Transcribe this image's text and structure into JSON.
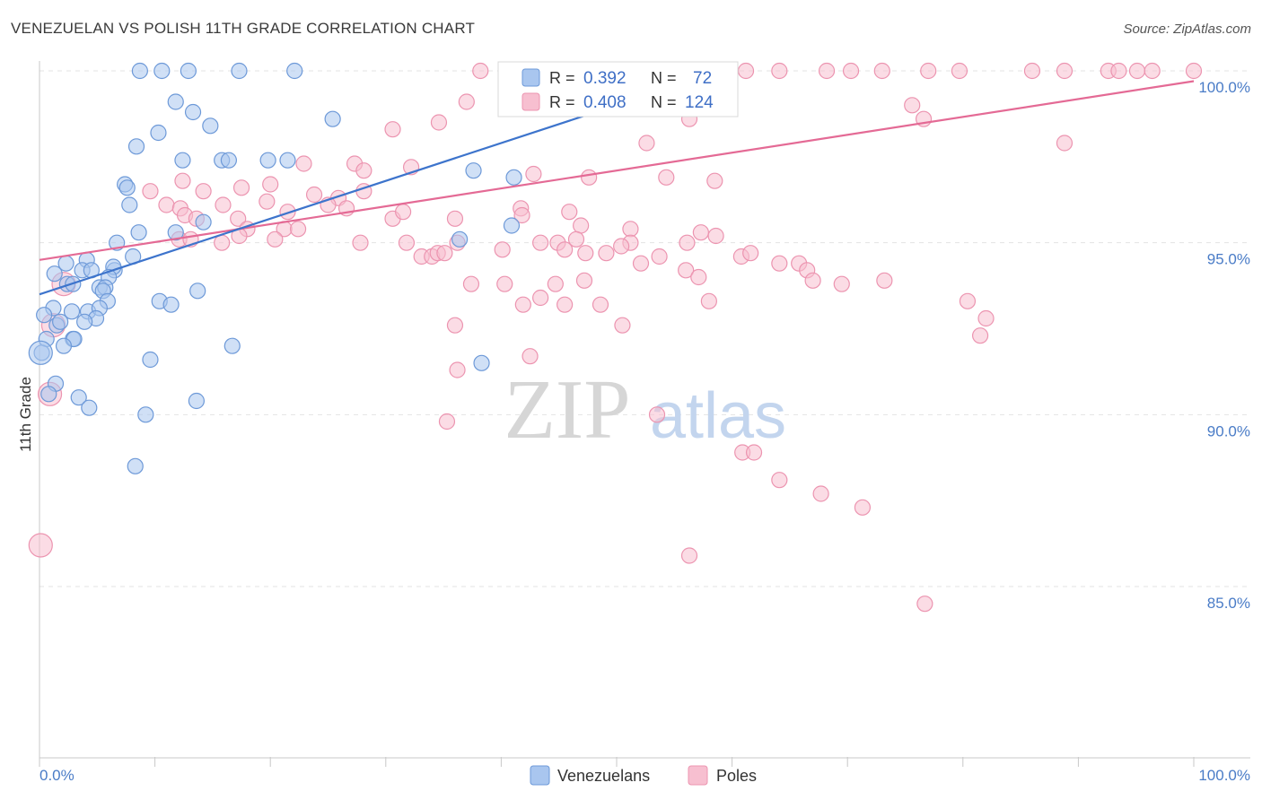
{
  "header": {
    "title": "VENEZUELAN VS POLISH 11TH GRADE CORRELATION CHART",
    "source": "Source: ZipAtlas.com"
  },
  "watermark": {
    "zip": "ZIP",
    "atlas": "atlas"
  },
  "colors": {
    "venezuelan_fill": "#a9c6ef",
    "venezuelan_stroke": "#6d99d8",
    "venezuelan_line": "#3d74cc",
    "poles_fill": "#f7bfd0",
    "poles_stroke": "#ec94b0",
    "poles_line": "#e46a95",
    "tick_text": "#4a7cc7",
    "grid": "#e3e3e3"
  },
  "stats_box": {
    "venezuelans": {
      "r_label": "R =",
      "r_value": "0.392",
      "n_label": "N =",
      "n_value": "72"
    },
    "poles": {
      "r_label": "R =",
      "r_value": "0.408",
      "n_label": "N =",
      "n_value": "124"
    }
  },
  "chart_data": {
    "type": "scatter",
    "title": "VENEZUELAN VS POLISH 11TH GRADE CORRELATION CHART",
    "xlabel": "",
    "ylabel": "11th Grade",
    "xlim": [
      0,
      100
    ],
    "ylim": [
      80.5,
      100.8
    ],
    "x_tick_labels": [
      "0.0%",
      "100.0%"
    ],
    "y_ticks": [
      85,
      90,
      95,
      100
    ],
    "y_tick_labels": [
      "85.0%",
      "90.0%",
      "95.0%",
      "100.0%"
    ],
    "grid": true,
    "legend": [
      "Venezuelans",
      "Poles"
    ],
    "series": [
      {
        "name": "Venezuelans",
        "r": 0.392,
        "n": 72,
        "trend": {
          "x": [
            0,
            50
          ],
          "y": [
            93.5,
            99.0
          ]
        },
        "points": [
          [
            8.7,
            100
          ],
          [
            10.6,
            100
          ],
          [
            12.9,
            100
          ],
          [
            17.3,
            100
          ],
          [
            22.1,
            100
          ],
          [
            11.8,
            99.1
          ],
          [
            13.3,
            98.8
          ],
          [
            14.8,
            98.4
          ],
          [
            25.4,
            98.6
          ],
          [
            10.3,
            98.2
          ],
          [
            8.4,
            97.8
          ],
          [
            12.4,
            97.4
          ],
          [
            15.8,
            97.4
          ],
          [
            16.4,
            97.4
          ],
          [
            19.8,
            97.4
          ],
          [
            21.5,
            97.4
          ],
          [
            37.6,
            97.1
          ],
          [
            41.1,
            96.9
          ],
          [
            7.4,
            96.7
          ],
          [
            7.6,
            96.6
          ],
          [
            7.8,
            96.1
          ],
          [
            14.2,
            95.6
          ],
          [
            40.9,
            95.5
          ],
          [
            11.8,
            95.3
          ],
          [
            8.6,
            95.3
          ],
          [
            36.4,
            95.1
          ],
          [
            6.7,
            95.0
          ],
          [
            8.1,
            94.6
          ],
          [
            4.1,
            94.5
          ],
          [
            2.3,
            94.4
          ],
          [
            1.3,
            94.1
          ],
          [
            3.7,
            94.2
          ],
          [
            4.5,
            94.2
          ],
          [
            6.5,
            94.2
          ],
          [
            6.4,
            94.3
          ],
          [
            6.0,
            94.0
          ],
          [
            2.4,
            93.8
          ],
          [
            2.9,
            93.8
          ],
          [
            5.2,
            93.7
          ],
          [
            5.7,
            93.7
          ],
          [
            5.5,
            93.6
          ],
          [
            13.7,
            93.6
          ],
          [
            10.4,
            93.3
          ],
          [
            11.4,
            93.2
          ],
          [
            5.9,
            93.3
          ],
          [
            4.2,
            93.0
          ],
          [
            5.2,
            93.1
          ],
          [
            1.2,
            93.1
          ],
          [
            2.8,
            93.0
          ],
          [
            0.4,
            92.9
          ],
          [
            4.9,
            92.8
          ],
          [
            1.5,
            92.6
          ],
          [
            1.8,
            92.7
          ],
          [
            3.9,
            92.7
          ],
          [
            0.6,
            92.2
          ],
          [
            2.9,
            92.2
          ],
          [
            3.0,
            92.2
          ],
          [
            2.1,
            92.0
          ],
          [
            16.7,
            92.0
          ],
          [
            0.2,
            91.8
          ],
          [
            9.6,
            91.6
          ],
          [
            38.3,
            91.5
          ],
          [
            1.4,
            90.9
          ],
          [
            0.8,
            90.6
          ],
          [
            3.4,
            90.5
          ],
          [
            13.6,
            90.4
          ],
          [
            4.3,
            90.2
          ],
          [
            9.2,
            90.0
          ],
          [
            8.3,
            88.5
          ]
        ],
        "big_points": [
          [
            0.1,
            91.8
          ]
        ]
      },
      {
        "name": "Poles",
        "r": 0.408,
        "n": 124,
        "trend": {
          "x": [
            0,
            100
          ],
          "y": [
            94.5,
            99.7
          ]
        },
        "points": [
          [
            38.2,
            100
          ],
          [
            42.6,
            100
          ],
          [
            44.0,
            100
          ],
          [
            47.5,
            100
          ],
          [
            50.6,
            100
          ],
          [
            51.6,
            100
          ],
          [
            52.6,
            100
          ],
          [
            53.7,
            100
          ],
          [
            55.6,
            100
          ],
          [
            57.0,
            100
          ],
          [
            61.2,
            100
          ],
          [
            64.1,
            100
          ],
          [
            68.2,
            100
          ],
          [
            70.3,
            100
          ],
          [
            73.0,
            100
          ],
          [
            77.0,
            100
          ],
          [
            79.7,
            100
          ],
          [
            86.0,
            100
          ],
          [
            88.8,
            100
          ],
          [
            92.6,
            100
          ],
          [
            93.5,
            100
          ],
          [
            95.1,
            100
          ],
          [
            96.4,
            100
          ],
          [
            100,
            100
          ],
          [
            37.0,
            99.1
          ],
          [
            46.5,
            99.3
          ],
          [
            49.6,
            99.2
          ],
          [
            75.6,
            99.0
          ],
          [
            56.3,
            98.6
          ],
          [
            76.6,
            98.6
          ],
          [
            34.6,
            98.5
          ],
          [
            30.6,
            98.3
          ],
          [
            52.6,
            97.9
          ],
          [
            88.8,
            97.9
          ],
          [
            22.9,
            97.3
          ],
          [
            27.3,
            97.3
          ],
          [
            28.1,
            97.1
          ],
          [
            32.2,
            97.2
          ],
          [
            42.8,
            97.0
          ],
          [
            47.6,
            96.9
          ],
          [
            12.4,
            96.8
          ],
          [
            20.0,
            96.7
          ],
          [
            54.3,
            96.9
          ],
          [
            58.5,
            96.8
          ],
          [
            9.6,
            96.5
          ],
          [
            14.2,
            96.5
          ],
          [
            17.5,
            96.6
          ],
          [
            23.8,
            96.4
          ],
          [
            28.1,
            96.5
          ],
          [
            25.9,
            96.3
          ],
          [
            26.6,
            96.0
          ],
          [
            25.0,
            96.1
          ],
          [
            19.7,
            96.2
          ],
          [
            41.7,
            96.0
          ],
          [
            45.9,
            95.9
          ],
          [
            11.0,
            96.1
          ],
          [
            12.2,
            96.0
          ],
          [
            15.9,
            96.1
          ],
          [
            21.5,
            95.9
          ],
          [
            12.6,
            95.8
          ],
          [
            13.6,
            95.7
          ],
          [
            17.2,
            95.7
          ],
          [
            18.0,
            95.4
          ],
          [
            21.2,
            95.4
          ],
          [
            22.4,
            95.4
          ],
          [
            30.6,
            95.7
          ],
          [
            31.5,
            95.9
          ],
          [
            36.0,
            95.7
          ],
          [
            41.8,
            95.8
          ],
          [
            46.9,
            95.5
          ],
          [
            51.2,
            95.4
          ],
          [
            57.3,
            95.3
          ],
          [
            58.6,
            95.2
          ],
          [
            51.2,
            95.0
          ],
          [
            56.1,
            95.0
          ],
          [
            12.1,
            95.1
          ],
          [
            13.1,
            95.1
          ],
          [
            15.8,
            95.0
          ],
          [
            17.3,
            95.2
          ],
          [
            20.4,
            95.1
          ],
          [
            27.8,
            95.0
          ],
          [
            31.8,
            95.0
          ],
          [
            33.1,
            94.6
          ],
          [
            34.0,
            94.6
          ],
          [
            34.5,
            94.7
          ],
          [
            35.1,
            94.7
          ],
          [
            36.2,
            95.0
          ],
          [
            40.1,
            94.8
          ],
          [
            43.4,
            95.0
          ],
          [
            44.9,
            95.0
          ],
          [
            45.5,
            94.8
          ],
          [
            46.5,
            95.1
          ],
          [
            47.3,
            94.7
          ],
          [
            49.1,
            94.7
          ],
          [
            50.4,
            94.9
          ],
          [
            52.1,
            94.4
          ],
          [
            53.7,
            94.6
          ],
          [
            56.0,
            94.2
          ],
          [
            57.1,
            94.0
          ],
          [
            60.8,
            94.6
          ],
          [
            61.6,
            94.7
          ],
          [
            64.1,
            94.4
          ],
          [
            65.8,
            94.4
          ],
          [
            66.5,
            94.2
          ],
          [
            67.0,
            93.9
          ],
          [
            69.5,
            93.8
          ],
          [
            73.2,
            93.9
          ],
          [
            47.2,
            93.9
          ],
          [
            37.4,
            93.8
          ],
          [
            40.3,
            93.8
          ],
          [
            44.7,
            93.8
          ],
          [
            43.4,
            93.4
          ],
          [
            41.9,
            93.2
          ],
          [
            45.5,
            93.2
          ],
          [
            48.6,
            93.2
          ],
          [
            58.0,
            93.3
          ],
          [
            80.4,
            93.3
          ],
          [
            82.0,
            92.8
          ],
          [
            36.0,
            92.6
          ],
          [
            50.5,
            92.6
          ],
          [
            81.5,
            92.3
          ],
          [
            36.2,
            91.3
          ],
          [
            42.5,
            91.7
          ],
          [
            35.3,
            89.8
          ],
          [
            53.5,
            90.0
          ],
          [
            60.9,
            88.9
          ],
          [
            61.9,
            88.9
          ],
          [
            64.1,
            88.1
          ],
          [
            67.7,
            87.7
          ],
          [
            71.3,
            87.3
          ],
          [
            56.3,
            85.9
          ],
          [
            76.7,
            84.5
          ]
        ],
        "big_points": [
          [
            0.1,
            86.2
          ],
          [
            2.1,
            93.8
          ],
          [
            0.9,
            90.6
          ],
          [
            1.2,
            92.6
          ]
        ]
      }
    ]
  }
}
